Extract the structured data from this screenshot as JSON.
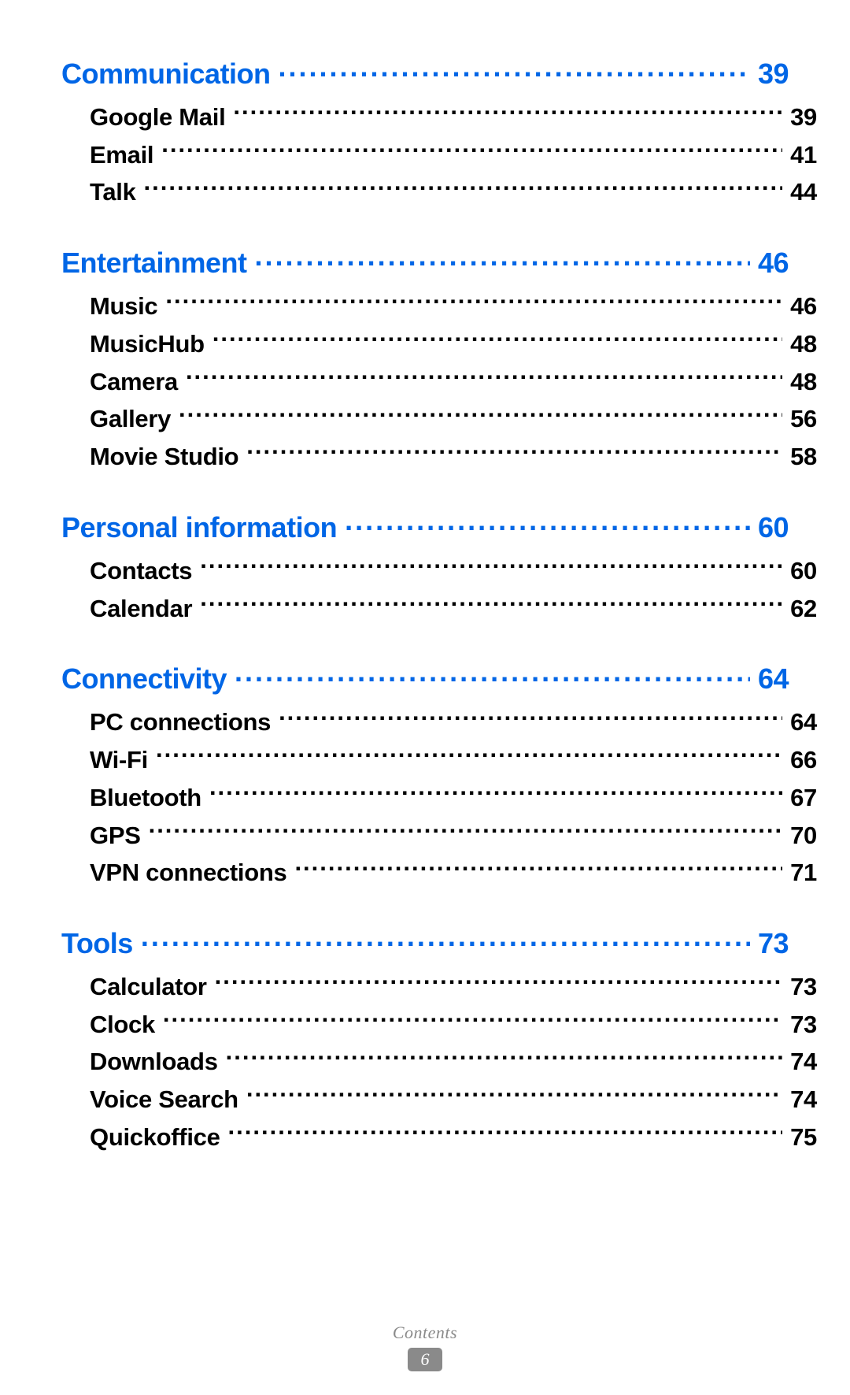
{
  "colors": {
    "section_heading": "#0066e6",
    "item_text": "#000000",
    "footer_text": "#8a8a8a",
    "footer_badge_bg": "#8a8a8a",
    "footer_badge_fg": "#ffffff",
    "background": "#ffffff"
  },
  "typography": {
    "section_fontsize": 36,
    "item_fontsize": 31,
    "footer_fontsize": 22
  },
  "footer": {
    "label": "Contents",
    "page_number": "6"
  },
  "sections": [
    {
      "title": "Communication",
      "page": "39",
      "items": [
        {
          "title": "Google Mail",
          "page": "39"
        },
        {
          "title": "Email",
          "page": "41"
        },
        {
          "title": "Talk",
          "page": "44"
        }
      ]
    },
    {
      "title": "Entertainment",
      "page": "46",
      "items": [
        {
          "title": "Music",
          "page": "46"
        },
        {
          "title": "MusicHub",
          "page": "48"
        },
        {
          "title": "Camera",
          "page": "48"
        },
        {
          "title": "Gallery",
          "page": "56"
        },
        {
          "title": "Movie Studio",
          "page": "58"
        }
      ]
    },
    {
      "title": "Personal information",
      "page": "60",
      "items": [
        {
          "title": "Contacts",
          "page": "60"
        },
        {
          "title": "Calendar",
          "page": "62"
        }
      ]
    },
    {
      "title": "Connectivity",
      "page": "64",
      "items": [
        {
          "title": "PC connections",
          "page": "64"
        },
        {
          "title": "Wi-Fi",
          "page": "66"
        },
        {
          "title": "Bluetooth",
          "page": "67"
        },
        {
          "title": "GPS",
          "page": "70"
        },
        {
          "title": "VPN connections",
          "page": "71"
        }
      ]
    },
    {
      "title": "Tools",
      "page": "73",
      "items": [
        {
          "title": "Calculator",
          "page": "73"
        },
        {
          "title": "Clock",
          "page": "73"
        },
        {
          "title": "Downloads",
          "page": "74"
        },
        {
          "title": "Voice Search",
          "page": "74"
        },
        {
          "title": "Quickoffice",
          "page": "75"
        }
      ]
    }
  ]
}
